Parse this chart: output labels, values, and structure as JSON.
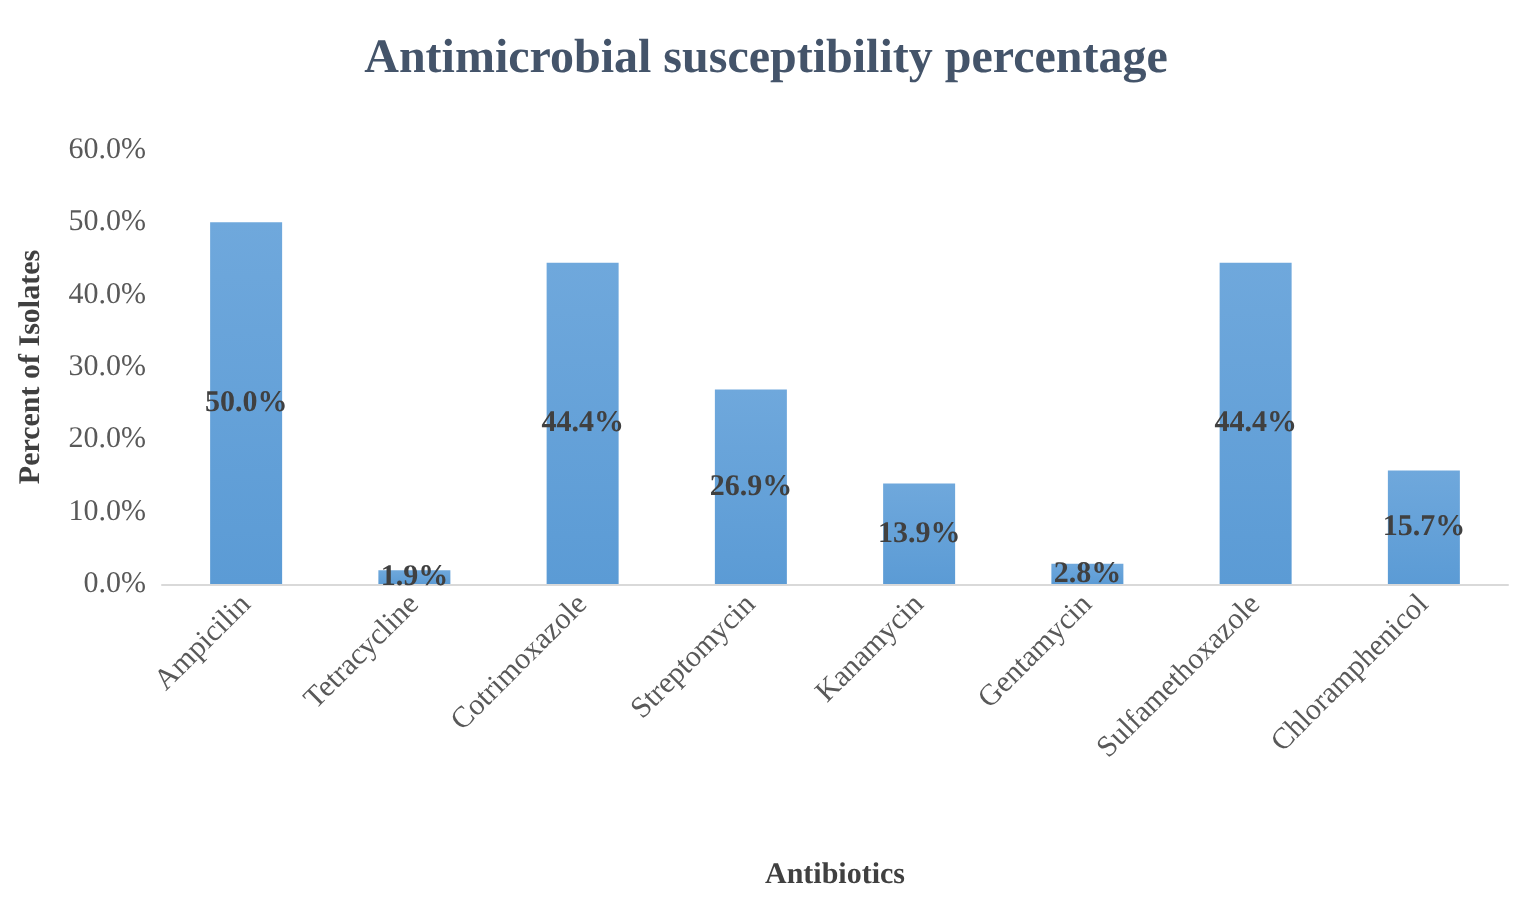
{
  "chart_data": {
    "type": "bar",
    "title": "Antimicrobial susceptibility percentage",
    "xlabel": "Antibiotics",
    "ylabel": "Percent of Isolates",
    "categories": [
      "Ampicilin",
      "Tetracycline",
      "Cotrimoxazole",
      "Streptomycin",
      "Kanamycin",
      "Gentamycin",
      "Sulfamethoxazole",
      "Chloramphenicol"
    ],
    "values": [
      50.0,
      1.9,
      44.4,
      26.9,
      13.9,
      2.8,
      44.4,
      15.7
    ],
    "value_labels": [
      "50.0%",
      "1.9%",
      "44.4%",
      "26.9%",
      "13.9%",
      "2.8%",
      "44.4%",
      "15.7%"
    ],
    "color": "#5b9bd5",
    "ylim": [
      0,
      60
    ],
    "yticks": [
      {
        "value": 0,
        "label": "0.0%"
      },
      {
        "value": 10,
        "label": "10.0%"
      },
      {
        "value": 20,
        "label": "20.0%"
      },
      {
        "value": 30,
        "label": "30.0%"
      },
      {
        "value": 40,
        "label": "40.0%"
      },
      {
        "value": 50,
        "label": "50.0%"
      },
      {
        "value": 60,
        "label": "60.0%"
      }
    ],
    "grid": false
  }
}
